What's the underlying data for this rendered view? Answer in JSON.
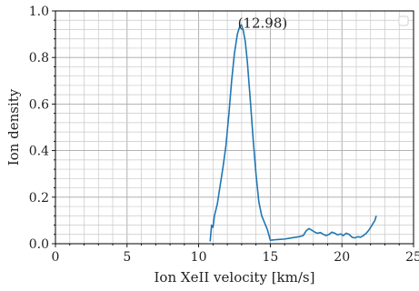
{
  "chart_data": {
    "type": "line",
    "title": "",
    "xlabel": "Ion XeII velocity [km/s]",
    "ylabel": "Ion density",
    "xlim": [
      0,
      25
    ],
    "ylim": [
      0,
      1.0
    ],
    "x_ticks": [
      "0",
      "5",
      "10",
      "15",
      "20",
      "25"
    ],
    "y_ticks": [
      "0.0",
      "0.2",
      "0.4",
      "0.6",
      "0.8",
      "1.0"
    ],
    "grid": true,
    "minor_ticks": true,
    "legend": "top-right, empty",
    "series": [
      {
        "color": "#1f77b4",
        "x": [
          10.8,
          10.9,
          11.0,
          11.1,
          11.3,
          11.5,
          11.7,
          11.9,
          12.1,
          12.3,
          12.5,
          12.7,
          12.85,
          12.98,
          13.1,
          13.25,
          13.4,
          13.6,
          13.8,
          14.0,
          14.2,
          14.4,
          14.6,
          14.8,
          15.0,
          15.5,
          16.0,
          16.5,
          17.0,
          17.3,
          17.5,
          17.7,
          17.9,
          18.1,
          18.3,
          18.5,
          18.7,
          18.9,
          19.1,
          19.3,
          19.5,
          19.7,
          19.9,
          20.1,
          20.3,
          20.5,
          20.7,
          20.9,
          21.1,
          21.3,
          21.5,
          21.7,
          21.9,
          22.1,
          22.3,
          22.4
        ],
        "y": [
          0.01,
          0.08,
          0.07,
          0.12,
          0.17,
          0.25,
          0.33,
          0.42,
          0.55,
          0.7,
          0.82,
          0.9,
          0.93,
          0.94,
          0.92,
          0.87,
          0.78,
          0.62,
          0.45,
          0.3,
          0.18,
          0.12,
          0.09,
          0.06,
          0.015,
          0.018,
          0.02,
          0.025,
          0.03,
          0.035,
          0.055,
          0.065,
          0.058,
          0.05,
          0.045,
          0.048,
          0.04,
          0.035,
          0.04,
          0.05,
          0.045,
          0.038,
          0.042,
          0.035,
          0.045,
          0.04,
          0.028,
          0.025,
          0.03,
          0.028,
          0.035,
          0.045,
          0.06,
          0.08,
          0.1,
          0.12
        ]
      }
    ],
    "annotations": [
      {
        "x": 12.98,
        "y": 0.94,
        "text": "(12.98)"
      }
    ]
  }
}
